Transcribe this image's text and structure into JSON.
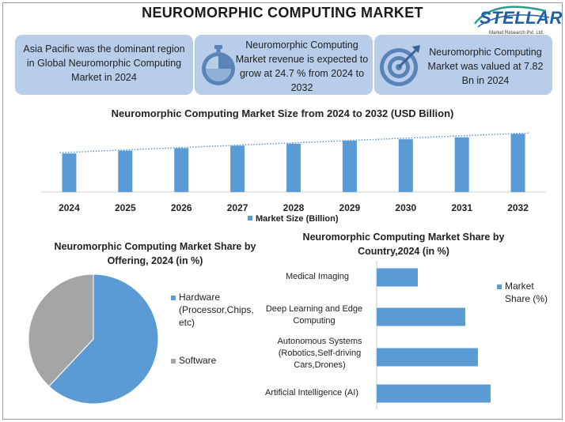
{
  "title": "NEUROMORPHIC COMPUTING MARKET",
  "logo": {
    "name": "STELLAR",
    "tagline": "Market Research Pvt. Ltd."
  },
  "cards": [
    {
      "text": "Asia Pacific was the dominant region in Global Neuromorphic Computing Market in 2024",
      "icon": ""
    },
    {
      "text": "Neuromorphic Computing Market revenue is expected to grow at 24.7 % from 2024 to 2032",
      "icon": "stopwatch-icon"
    },
    {
      "text": "Neuromorphic Computing Market was valued at 7.82 Bn in 2024",
      "icon": "target-icon"
    }
  ],
  "colors": {
    "bar": "#5b9bd5",
    "software": "#a5a5a5",
    "card": "#b7cde9",
    "trend": "#5b9bd5"
  },
  "chart_data": [
    {
      "type": "bar",
      "title": "Neuromorphic Computing Market Size from 2024 to 2032 (USD Billion)",
      "categories": [
        "2024",
        "2025",
        "2026",
        "2027",
        "2028",
        "2029",
        "2030",
        "2031",
        "2032"
      ],
      "series": [
        {
          "name": "Market Size (Billion)",
          "values": [
            7.82,
            8.4,
            8.9,
            9.4,
            9.8,
            10.4,
            10.7,
            11.1,
            11.8
          ]
        }
      ],
      "trendline": "linear",
      "ylim": [
        0,
        12.5
      ],
      "grid": false,
      "legend": "bottom"
    },
    {
      "type": "pie",
      "title": "Neuromorphic Computing Market Share by Offering, 2024 (in %)",
      "labels": [
        "Hardware (Processor,Chips, etc)",
        "Software"
      ],
      "values": [
        62,
        38
      ],
      "legend": "right"
    },
    {
      "type": "bar",
      "orientation": "horizontal",
      "title": "Neuromorphic Computing Market Share by Country,2024 (in %)",
      "categories": [
        "Artificial Intelligence (AI)",
        "Autonomous Systems (Robotics,Self-driving Cars,Drones)",
        "Deep Learning and Edge Computing",
        "Medical Imaging"
      ],
      "series": [
        {
          "name": "Market Share (%)",
          "values": [
            36,
            32,
            28,
            13
          ]
        }
      ],
      "xlim": [
        0,
        40
      ],
      "legend": "right"
    }
  ],
  "legends": {
    "main": "Market Size (Billion)",
    "pie": [
      "Hardware (Processor,Chips, etc)",
      "Software"
    ],
    "country": "Market Share (%)"
  }
}
